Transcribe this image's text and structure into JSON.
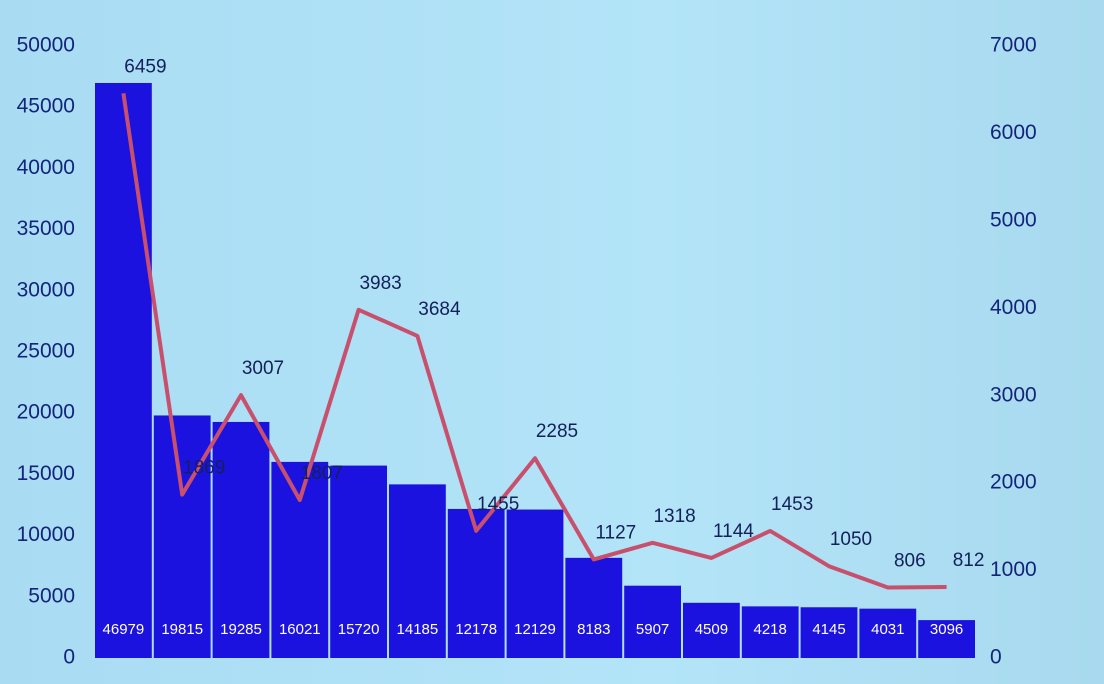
{
  "chart_data": {
    "type": "bar",
    "categories": [
      null,
      null,
      null,
      null,
      null,
      null,
      null,
      null,
      null,
      null,
      null,
      null,
      null,
      null,
      null
    ],
    "series": [
      {
        "type": "bar",
        "color": "#1c12e0",
        "values": [
          46979,
          19815,
          19285,
          16021,
          15720,
          14185,
          12178,
          12129,
          8183,
          5907,
          4509,
          4218,
          4145,
          4031,
          3096
        ]
      },
      {
        "type": "line",
        "axis": "y2",
        "color": "#c9506c",
        "values": [
          6459,
          1869,
          3007,
          1807,
          3983,
          3684,
          1455,
          2285,
          1127,
          1318,
          1144,
          1453,
          1050,
          806,
          812
        ]
      }
    ],
    "ylim": [
      0,
      50000
    ],
    "yticks": [
      0,
      5000,
      10000,
      15000,
      20000,
      25000,
      30000,
      35000,
      40000,
      45000,
      50000
    ],
    "y2lim": [
      0,
      7000
    ],
    "y2ticks": [
      0,
      1000,
      2000,
      3000,
      4000,
      5000,
      6000,
      7000
    ]
  }
}
